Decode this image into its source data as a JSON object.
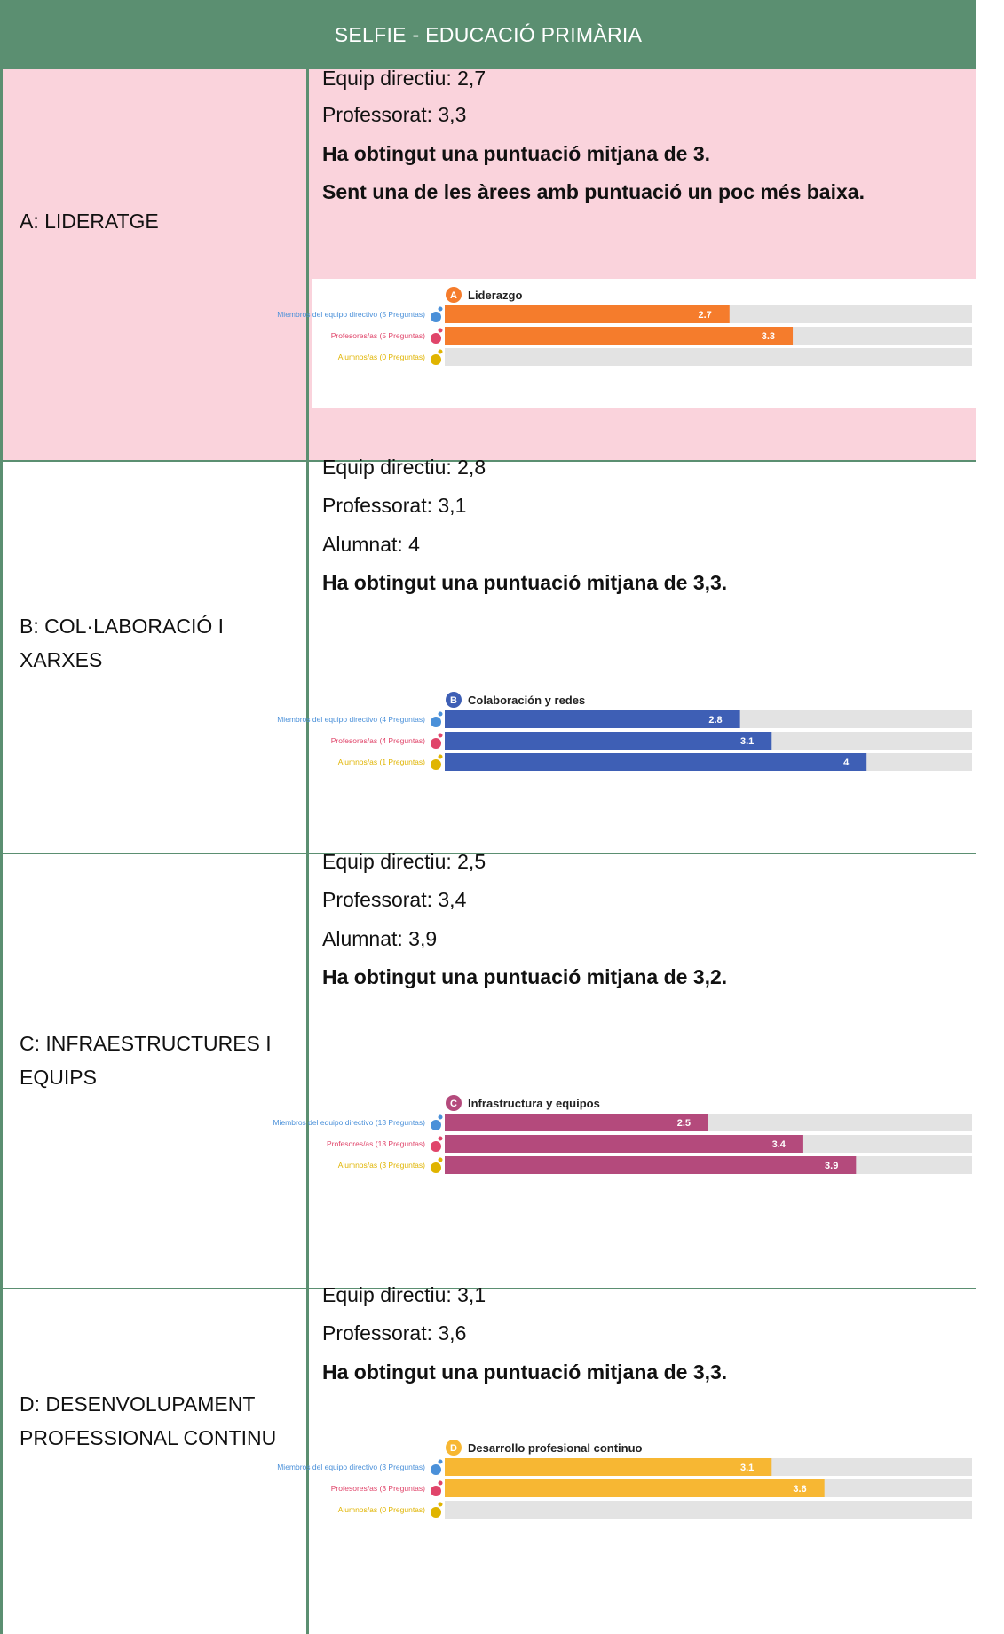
{
  "header": {
    "title": "SELFIE - EDUCACIÓ PRIMÀRIA"
  },
  "rows": [
    {
      "area": "A: LIDERATGE",
      "lines": [
        "Equip directiu: 2,7",
        "Professorat: 3,3"
      ],
      "summary": [
        "Ha obtingut una puntuació mitjana de 3.",
        "Sent una de les àrees amb puntuació un poc més baixa."
      ],
      "chart_title": "Liderazgo",
      "chart_letter": "A"
    },
    {
      "area": "B: COL·LABORACIÓ I XARXES",
      "lines": [
        "Equip directiu: 2,8",
        "Professorat: 3,1",
        "Alumnat: 4"
      ],
      "summary": [
        "Ha obtingut una puntuació mitjana de 3,3."
      ],
      "chart_title": "Colaboración y redes",
      "chart_letter": "B"
    },
    {
      "area": "C: INFRAESTRUCTURES I EQUIPS",
      "lines": [
        "Equip directiu: 2,5",
        "Professorat: 3,4",
        "Alumnat: 3,9"
      ],
      "summary": [
        "Ha obtingut una puntuació mitjana de 3,2."
      ],
      "chart_title": "Infrastructura y equipos",
      "chart_letter": "C"
    },
    {
      "area": "D: DESENVOLUPAMENT PROFESSIONAL CONTINU",
      "lines": [
        "Equip directiu: 3,1",
        "Professorat: 3,6"
      ],
      "summary": [
        "Ha obtingut una puntuació mitjana de 3,3."
      ],
      "chart_title": "Desarrollo profesional continuo",
      "chart_letter": "D"
    }
  ],
  "chart_data": [
    {
      "type": "bar",
      "title": "Liderazgo",
      "categories": [
        "Miembros del equipo directivo (5 Preguntas)",
        "Profesores/as (5 Preguntas)",
        "Alumnos/as (0 Preguntas)"
      ],
      "values": [
        2.7,
        3.3,
        null
      ],
      "value_labels": [
        "2.7",
        "3.3",
        ""
      ],
      "color": "#f57c2c",
      "xlim": [
        0,
        5
      ]
    },
    {
      "type": "bar",
      "title": "Colaboración y redes",
      "categories": [
        "Miembros del equipo directivo (4 Preguntas)",
        "Profesores/as (4 Preguntas)",
        "Alumnos/as (1 Preguntas)"
      ],
      "values": [
        2.8,
        3.1,
        4
      ],
      "value_labels": [
        "2.8",
        "3.1",
        "4"
      ],
      "color": "#3e5fb5",
      "xlim": [
        0,
        5
      ]
    },
    {
      "type": "bar",
      "title": "Infrastructura y equipos",
      "categories": [
        "Miembros del equipo directivo (13 Preguntas)",
        "Profesores/as (13 Preguntas)",
        "Alumnos/as (3 Preguntas)"
      ],
      "values": [
        2.5,
        3.4,
        3.9
      ],
      "value_labels": [
        "2.5",
        "3.4",
        "3.9"
      ],
      "color": "#b44a7c",
      "xlim": [
        0,
        5
      ]
    },
    {
      "type": "bar",
      "title": "Desarrollo profesional continuo",
      "categories": [
        "Miembros del equipo directivo (3 Preguntas)",
        "Profesores/as (3 Preguntas)",
        "Alumnos/as (0 Preguntas)"
      ],
      "values": [
        3.1,
        3.6,
        null
      ],
      "value_labels": [
        "3.1",
        "3.6",
        ""
      ],
      "color": "#f7b733",
      "xlim": [
        0,
        5
      ]
    }
  ],
  "colors": {
    "header": "#5b8f71",
    "row_a_bg": "#fad3dc",
    "label_director": "#4a90d9",
    "label_teacher": "#e0456a",
    "label_student": "#e0b400"
  }
}
